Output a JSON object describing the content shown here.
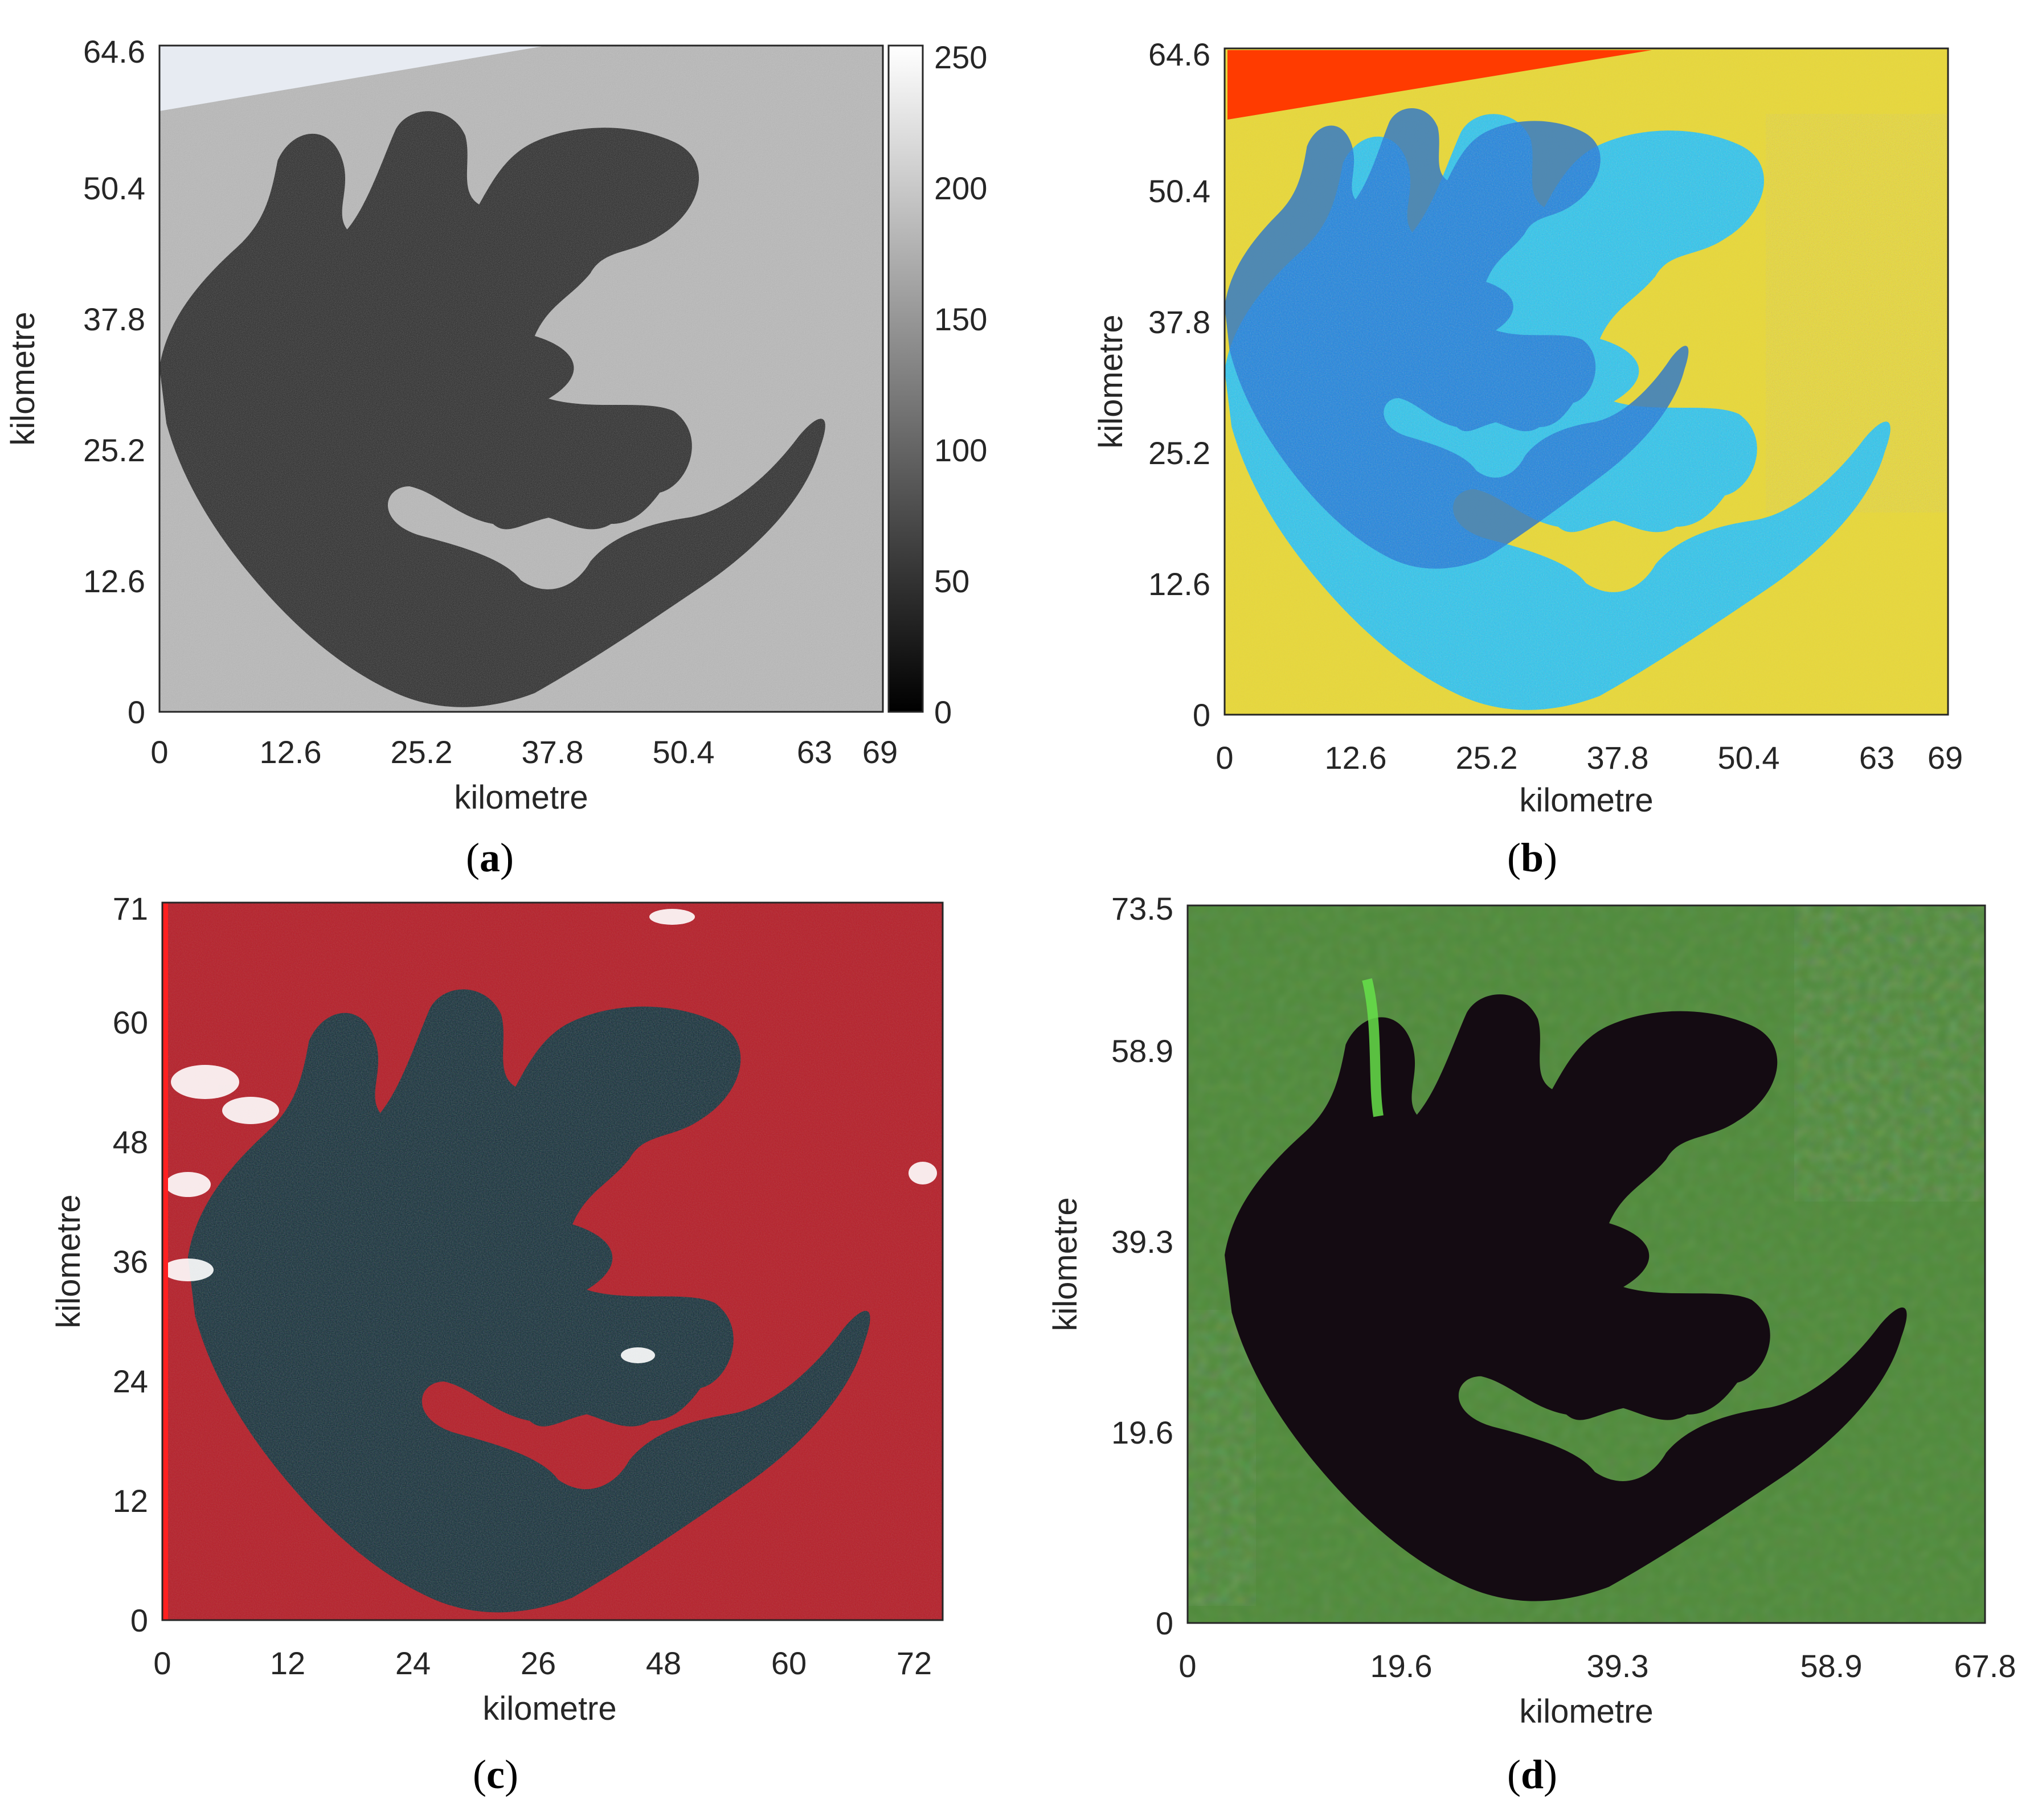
{
  "panels": [
    {
      "id": "a",
      "caption_letter": "a",
      "xlabel": "kilometre",
      "ylabel": "kilometre",
      "xticks": [
        "0",
        "12.6",
        "25.2",
        "37.8",
        "50.4",
        "63",
        "69"
      ],
      "yticks": [
        "0",
        "12.6",
        "25.2",
        "37.8",
        "50.4",
        "64.6"
      ],
      "colorbar_ticks": [
        "0",
        "50",
        "100",
        "150",
        "200",
        "250"
      ],
      "colormap": "gray"
    },
    {
      "id": "b",
      "caption_letter": "b",
      "xlabel": "kilometre",
      "ylabel": "kilometre",
      "xticks": [
        "0",
        "12.6",
        "25.2",
        "37.8",
        "50.4",
        "63",
        "69"
      ],
      "yticks": [
        "0",
        "12.6",
        "25.2",
        "37.8",
        "50.4",
        "64.6"
      ],
      "colormap": "jet"
    },
    {
      "id": "c",
      "caption_letter": "c",
      "xlabel": "kilometre",
      "ylabel": "kilometre",
      "xticks": [
        "0",
        "12",
        "24",
        "26",
        "48",
        "60",
        "72"
      ],
      "yticks": [
        "0",
        "12",
        "24",
        "36",
        "48",
        "60",
        "71"
      ],
      "colormap": "false-color-red"
    },
    {
      "id": "d",
      "caption_letter": "d",
      "xlabel": "kilometre",
      "ylabel": "kilometre",
      "xticks": [
        "0",
        "19.6",
        "39.3",
        "58.9",
        "67.8"
      ],
      "yticks": [
        "0",
        "19.6",
        "39.3",
        "58.9",
        "73.5"
      ],
      "colormap": "rgb-green"
    }
  ],
  "colors": {
    "water_gray": "#2a2a2a",
    "land_gray": "#b9b9b9",
    "water_blue": "#1e6fd8",
    "water_cyan": "#2fc6ee",
    "land_yellow": "#e8d83a",
    "land_red": "#e2301a",
    "water_dark": "#16303a",
    "land_crimson": "#b5202a",
    "water_black": "#140b12",
    "land_green": "#4f8a3a"
  }
}
